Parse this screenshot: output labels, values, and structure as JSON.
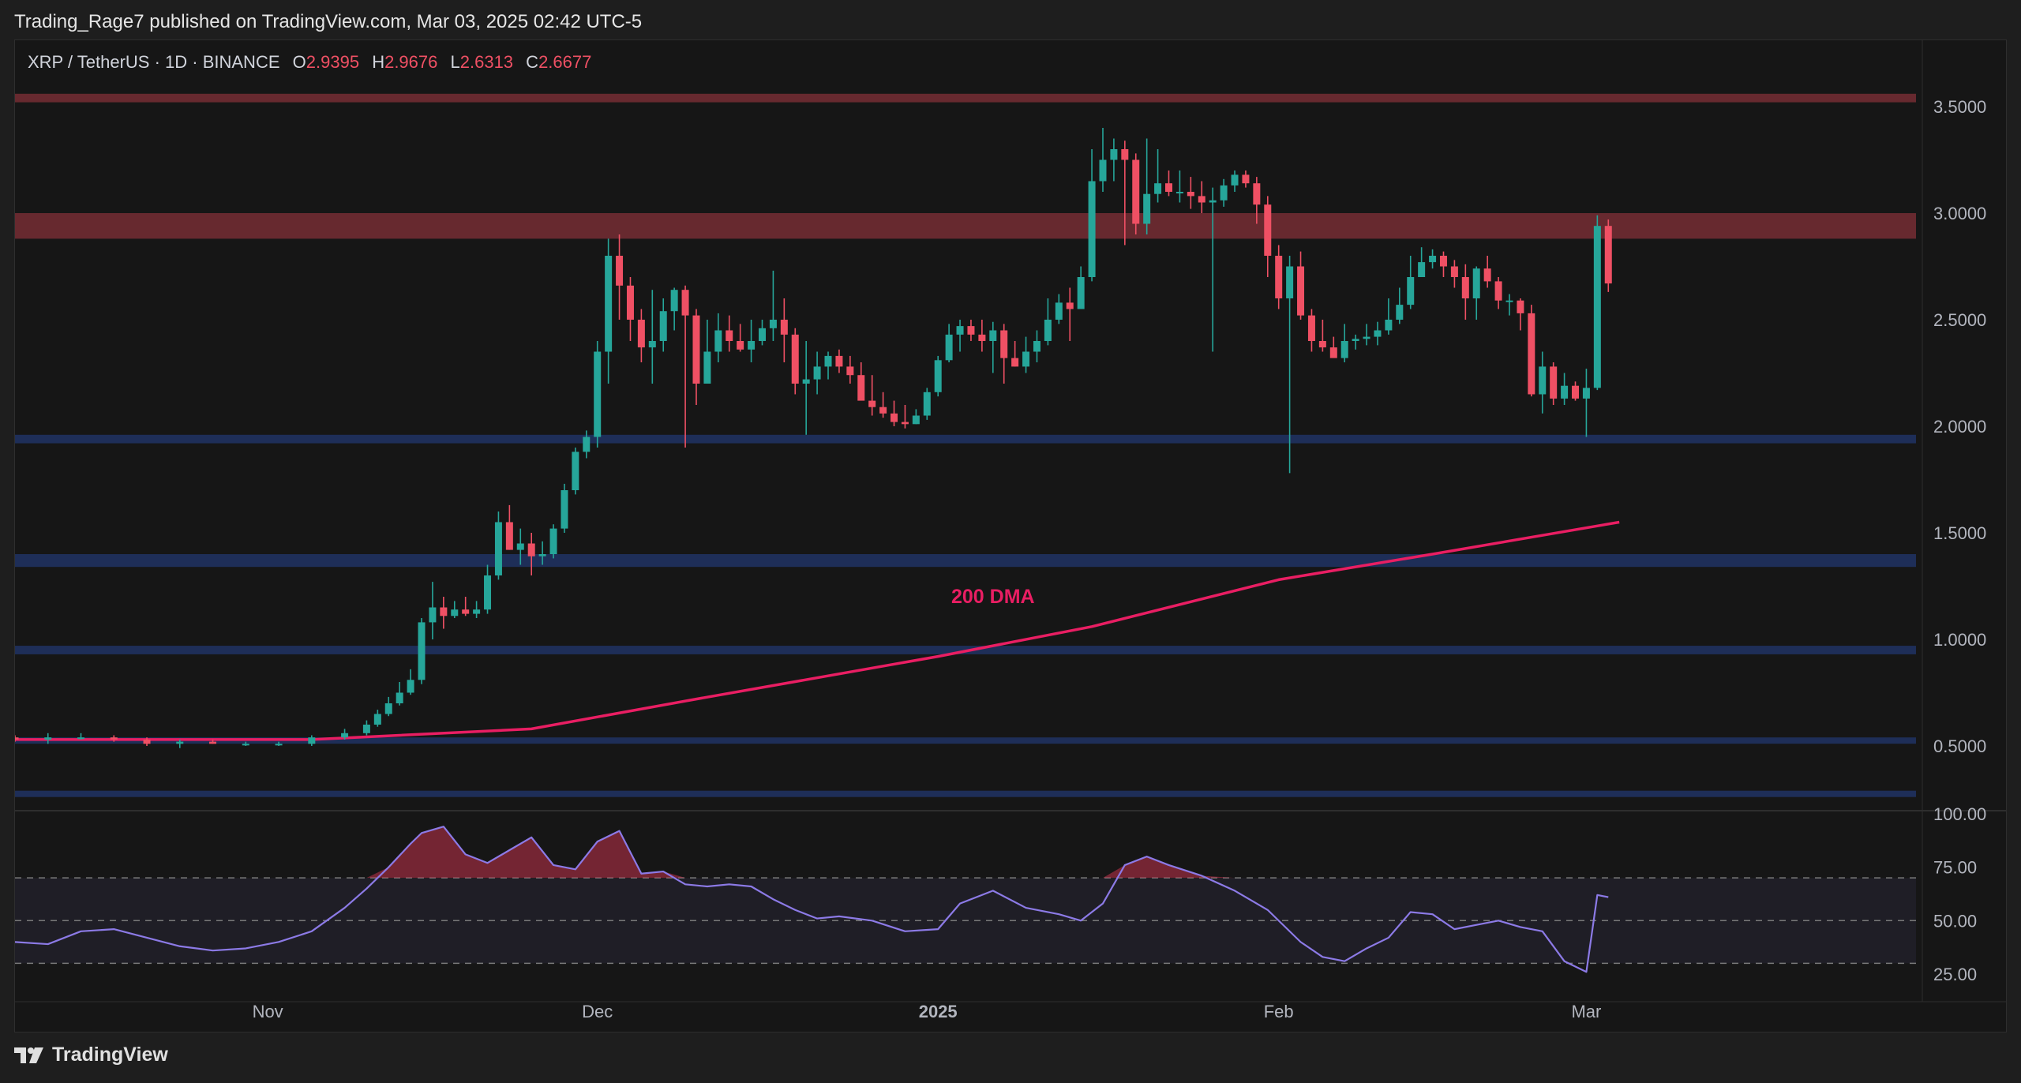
{
  "header": {
    "published_by": "Trading_Rage7 published on TradingView.com, Mar 03, 2025 02:42 UTC-5"
  },
  "symbol_bar": {
    "symbol": "XRP / TetherUS · 1D · BINANCE",
    "o_label": "O",
    "o_value": "2.9395",
    "h_label": "H",
    "h_value": "2.9676",
    "l_label": "L",
    "l_value": "2.6313",
    "c_label": "C",
    "c_value": "2.6677"
  },
  "footer": {
    "brand": "TradingView"
  },
  "colors": {
    "up": "#26a69a",
    "down": "#ef5064",
    "dma": "#e91e63",
    "rsi": "#8c7ae6",
    "supply_zone": "#6b2a30",
    "support_zone": "#1f2f5c",
    "value_text": "#ef5064"
  },
  "chart_data": [
    {
      "type": "candlestick",
      "title": "",
      "symbol": "XRP / TetherUS",
      "interval": "1D",
      "exchange": "BINANCE",
      "ylim": [
        0.2,
        3.7
      ],
      "y_ticks": [
        "3.5000",
        "3.0000",
        "2.5000",
        "2.0000",
        "1.5000",
        "1.0000",
        "0.5000"
      ],
      "x_ticks": [
        "Nov",
        "Dec",
        "2025",
        "Feb",
        "Mar"
      ],
      "x_tick_dates": [
        "2024-11-01",
        "2024-12-01",
        "2025-01-01",
        "2025-02-01",
        "2025-03-01"
      ],
      "x_range": [
        "2024-10-09",
        "2025-03-31"
      ],
      "grid": false,
      "annotations": [
        {
          "text": "200 DMA",
          "date": "2025-01-06",
          "price": 1.17
        }
      ],
      "zones": [
        {
          "kind": "resistance",
          "low": 3.52,
          "high": 3.56
        },
        {
          "kind": "resistance",
          "low": 2.88,
          "high": 3.0
        },
        {
          "kind": "support",
          "low": 1.92,
          "high": 1.96
        },
        {
          "kind": "support",
          "low": 1.34,
          "high": 1.4
        },
        {
          "kind": "support",
          "low": 0.93,
          "high": 0.97
        },
        {
          "kind": "support",
          "low": 0.52,
          "high": 0.54
        },
        {
          "kind": "support",
          "low": 0.27,
          "high": 0.29
        }
      ],
      "dma_200": {
        "dates": [
          "2024-10-09",
          "2024-11-05",
          "2024-11-25",
          "2024-12-10",
          "2025-01-01",
          "2025-01-15",
          "2025-02-01",
          "2025-02-15",
          "2025-03-04"
        ],
        "values": [
          0.53,
          0.53,
          0.58,
          0.72,
          0.92,
          1.06,
          1.28,
          1.4,
          1.55
        ]
      },
      "series": [
        {
          "dates": [
            "2024-10-09",
            "2024-10-12",
            "2024-10-15",
            "2024-10-18",
            "2024-10-21",
            "2024-10-24",
            "2024-10-27",
            "2024-10-30",
            "2024-11-02",
            "2024-11-05",
            "2024-11-08",
            "2024-11-10",
            "2024-11-11",
            "2024-11-12",
            "2024-11-13",
            "2024-11-14",
            "2024-11-15",
            "2024-11-16",
            "2024-11-17",
            "2024-11-18",
            "2024-11-19",
            "2024-11-20",
            "2024-11-21",
            "2024-11-22",
            "2024-11-23",
            "2024-11-24",
            "2024-11-25",
            "2024-11-26",
            "2024-11-27",
            "2024-11-28",
            "2024-11-29",
            "2024-11-30",
            "2024-12-01",
            "2024-12-02",
            "2024-12-03",
            "2024-12-04",
            "2024-12-05",
            "2024-12-06",
            "2024-12-07",
            "2024-12-08",
            "2024-12-09",
            "2024-12-10",
            "2024-12-11",
            "2024-12-12",
            "2024-12-13",
            "2024-12-14",
            "2024-12-15",
            "2024-12-16",
            "2024-12-17",
            "2024-12-18",
            "2024-12-19",
            "2024-12-20",
            "2024-12-21",
            "2024-12-22",
            "2024-12-23",
            "2024-12-24",
            "2024-12-25",
            "2024-12-26",
            "2024-12-27",
            "2024-12-28",
            "2024-12-29",
            "2024-12-30",
            "2024-12-31",
            "2025-01-01",
            "2025-01-02",
            "2025-01-03",
            "2025-01-04",
            "2025-01-05",
            "2025-01-06",
            "2025-01-07",
            "2025-01-08",
            "2025-01-09",
            "2025-01-10",
            "2025-01-11",
            "2025-01-12",
            "2025-01-13",
            "2025-01-14",
            "2025-01-15",
            "2025-01-16",
            "2025-01-17",
            "2025-01-18",
            "2025-01-19",
            "2025-01-20",
            "2025-01-21",
            "2025-01-22",
            "2025-01-23",
            "2025-01-24",
            "2025-01-25",
            "2025-01-26",
            "2025-01-27",
            "2025-01-28",
            "2025-01-29",
            "2025-01-30",
            "2025-01-31",
            "2025-02-01",
            "2025-02-02",
            "2025-02-03",
            "2025-02-04",
            "2025-02-05",
            "2025-02-06",
            "2025-02-07",
            "2025-02-08",
            "2025-02-09",
            "2025-02-10",
            "2025-02-11",
            "2025-02-12",
            "2025-02-13",
            "2025-02-14",
            "2025-02-15",
            "2025-02-16",
            "2025-02-17",
            "2025-02-18",
            "2025-02-19",
            "2025-02-20",
            "2025-02-21",
            "2025-02-22",
            "2025-02-23",
            "2025-02-24",
            "2025-02-25",
            "2025-02-26",
            "2025-02-27",
            "2025-02-28",
            "2025-03-01",
            "2025-03-02",
            "2025-03-03"
          ],
          "open": [
            0.54,
            0.53,
            0.54,
            0.54,
            0.53,
            0.51,
            0.52,
            0.51,
            0.51,
            0.51,
            0.54,
            0.56,
            0.6,
            0.65,
            0.7,
            0.75,
            0.81,
            1.08,
            1.15,
            1.11,
            1.14,
            1.12,
            1.14,
            1.3,
            1.55,
            1.42,
            1.45,
            1.39,
            1.4,
            1.52,
            1.7,
            1.88,
            1.95,
            2.35,
            2.8,
            2.66,
            2.5,
            2.37,
            2.4,
            2.54,
            2.64,
            2.52,
            2.2,
            2.35,
            2.45,
            2.4,
            2.36,
            2.4,
            2.46,
            2.5,
            2.43,
            2.2,
            2.22,
            2.28,
            2.33,
            2.28,
            2.24,
            2.12,
            2.09,
            2.06,
            2.02,
            2.01,
            2.05,
            2.16,
            2.31,
            2.43,
            2.47,
            2.43,
            2.4,
            2.45,
            2.32,
            2.28,
            2.35,
            2.4,
            2.5,
            2.58,
            2.55,
            2.7,
            3.15,
            3.25,
            3.3,
            3.25,
            2.95,
            3.09,
            3.14,
            3.1,
            3.1,
            3.08,
            3.05,
            3.06,
            3.13,
            3.18,
            3.14,
            3.04,
            2.8,
            2.6,
            2.75,
            2.52,
            2.4,
            2.37,
            2.32,
            2.4,
            2.41,
            2.42,
            2.45,
            2.5,
            2.57,
            2.7,
            2.77,
            2.8,
            2.75,
            2.7,
            2.6,
            2.74,
            2.68,
            2.59,
            2.59,
            2.53,
            2.15,
            2.28,
            2.13,
            2.19,
            2.13,
            2.18,
            2.94
          ],
          "high": [
            0.55,
            0.56,
            0.56,
            0.55,
            0.54,
            0.53,
            0.53,
            0.52,
            0.52,
            0.55,
            0.58,
            0.62,
            0.67,
            0.73,
            0.8,
            0.86,
            1.1,
            1.27,
            1.2,
            1.18,
            1.2,
            1.18,
            1.35,
            1.6,
            1.63,
            1.52,
            1.5,
            1.46,
            1.54,
            1.73,
            1.9,
            1.98,
            2.4,
            2.88,
            2.9,
            2.7,
            2.55,
            2.64,
            2.6,
            2.65,
            2.66,
            2.55,
            2.5,
            2.53,
            2.52,
            2.48,
            2.5,
            2.5,
            2.73,
            2.6,
            2.46,
            2.4,
            2.35,
            2.35,
            2.36,
            2.33,
            2.3,
            2.24,
            2.16,
            2.12,
            2.1,
            2.08,
            2.18,
            2.33,
            2.48,
            2.5,
            2.5,
            2.5,
            2.49,
            2.48,
            2.4,
            2.42,
            2.45,
            2.6,
            2.62,
            2.65,
            2.75,
            3.3,
            3.4,
            3.35,
            3.34,
            3.28,
            3.35,
            3.3,
            3.2,
            3.2,
            3.17,
            3.15,
            3.12,
            3.16,
            3.2,
            3.2,
            3.17,
            3.08,
            2.85,
            2.8,
            2.82,
            2.55,
            2.5,
            2.42,
            2.48,
            2.43,
            2.48,
            2.49,
            2.6,
            2.65,
            2.8,
            2.84,
            2.83,
            2.82,
            2.78,
            2.76,
            2.75,
            2.8,
            2.7,
            2.62,
            2.6,
            2.57,
            2.35,
            2.3,
            2.25,
            2.21,
            2.27,
            2.99,
            2.97
          ],
          "low": [
            0.52,
            0.51,
            0.53,
            0.52,
            0.5,
            0.49,
            0.51,
            0.5,
            0.5,
            0.5,
            0.53,
            0.55,
            0.59,
            0.64,
            0.69,
            0.74,
            0.79,
            1.0,
            1.05,
            1.1,
            1.11,
            1.1,
            1.12,
            1.28,
            1.42,
            1.35,
            1.3,
            1.35,
            1.38,
            1.5,
            1.68,
            1.85,
            1.9,
            2.2,
            2.5,
            2.4,
            2.3,
            2.2,
            2.35,
            2.45,
            1.9,
            2.1,
            2.2,
            2.3,
            2.35,
            2.35,
            2.3,
            2.38,
            2.4,
            2.3,
            2.15,
            1.96,
            2.15,
            2.22,
            2.25,
            2.2,
            2.13,
            2.05,
            2.04,
            2.0,
            1.99,
            2.01,
            2.03,
            2.14,
            2.3,
            2.35,
            2.4,
            2.35,
            2.25,
            2.2,
            2.28,
            2.25,
            2.3,
            2.38,
            2.48,
            2.4,
            2.55,
            2.68,
            3.1,
            3.15,
            2.85,
            2.9,
            2.9,
            3.05,
            3.08,
            3.05,
            3.02,
            3.0,
            2.35,
            3.03,
            3.1,
            3.12,
            2.95,
            2.7,
            2.55,
            1.78,
            2.5,
            2.35,
            2.35,
            2.33,
            2.3,
            2.36,
            2.38,
            2.38,
            2.43,
            2.48,
            2.55,
            2.7,
            2.74,
            2.7,
            2.65,
            2.5,
            2.5,
            2.65,
            2.55,
            2.52,
            2.45,
            2.14,
            2.06,
            2.1,
            2.1,
            2.12,
            1.95,
            2.17,
            2.63
          ],
          "close": [
            0.53,
            0.54,
            0.54,
            0.53,
            0.51,
            0.52,
            0.51,
            0.51,
            0.51,
            0.54,
            0.56,
            0.6,
            0.65,
            0.7,
            0.75,
            0.81,
            1.08,
            1.15,
            1.11,
            1.14,
            1.12,
            1.14,
            1.3,
            1.55,
            1.42,
            1.45,
            1.39,
            1.4,
            1.52,
            1.7,
            1.88,
            1.95,
            2.35,
            2.8,
            2.66,
            2.5,
            2.37,
            2.4,
            2.54,
            2.64,
            2.52,
            2.2,
            2.35,
            2.45,
            2.4,
            2.36,
            2.4,
            2.46,
            2.5,
            2.43,
            2.2,
            2.22,
            2.28,
            2.33,
            2.28,
            2.24,
            2.12,
            2.09,
            2.06,
            2.02,
            2.01,
            2.05,
            2.16,
            2.31,
            2.43,
            2.47,
            2.43,
            2.4,
            2.45,
            2.32,
            2.28,
            2.35,
            2.4,
            2.5,
            2.58,
            2.55,
            2.7,
            3.15,
            3.25,
            3.3,
            3.25,
            2.95,
            3.09,
            3.14,
            3.1,
            3.1,
            3.08,
            3.05,
            3.06,
            3.13,
            3.18,
            3.14,
            3.04,
            2.8,
            2.6,
            2.75,
            2.52,
            2.4,
            2.37,
            2.32,
            2.4,
            2.41,
            2.42,
            2.45,
            2.5,
            2.57,
            2.7,
            2.77,
            2.8,
            2.75,
            2.7,
            2.6,
            2.74,
            2.68,
            2.59,
            2.59,
            2.53,
            2.15,
            2.28,
            2.13,
            2.19,
            2.13,
            2.18,
            2.94,
            2.67
          ]
        }
      ]
    },
    {
      "type": "line",
      "title": "",
      "ylim": [
        15,
        100
      ],
      "y_ticks": [
        "100.00",
        "75.00",
        "50.00",
        "25.00"
      ],
      "levels": [
        30,
        50,
        70
      ],
      "series": [
        {
          "dates": [
            "2024-10-09",
            "2024-10-12",
            "2024-10-15",
            "2024-10-18",
            "2024-10-21",
            "2024-10-24",
            "2024-10-27",
            "2024-10-30",
            "2024-11-02",
            "2024-11-05",
            "2024-11-08",
            "2024-11-10",
            "2024-11-12",
            "2024-11-14",
            "2024-11-15",
            "2024-11-17",
            "2024-11-19",
            "2024-11-21",
            "2024-11-23",
            "2024-11-25",
            "2024-11-27",
            "2024-11-29",
            "2024-12-01",
            "2024-12-03",
            "2024-12-05",
            "2024-12-07",
            "2024-12-09",
            "2024-12-11",
            "2024-12-13",
            "2024-12-15",
            "2024-12-17",
            "2024-12-19",
            "2024-12-21",
            "2024-12-23",
            "2024-12-26",
            "2024-12-29",
            "2025-01-01",
            "2025-01-03",
            "2025-01-06",
            "2025-01-09",
            "2025-01-12",
            "2025-01-14",
            "2025-01-16",
            "2025-01-18",
            "2025-01-20",
            "2025-01-22",
            "2025-01-25",
            "2025-01-28",
            "2025-01-31",
            "2025-02-03",
            "2025-02-05",
            "2025-02-07",
            "2025-02-09",
            "2025-02-11",
            "2025-02-13",
            "2025-02-15",
            "2025-02-17",
            "2025-02-19",
            "2025-02-21",
            "2025-02-23",
            "2025-02-25",
            "2025-02-27",
            "2025-03-01",
            "2025-03-02",
            "2025-03-03"
          ],
          "values": [
            40,
            39,
            45,
            46,
            42,
            38,
            36,
            37,
            40,
            45,
            56,
            65,
            75,
            86,
            91,
            94,
            81,
            77,
            83,
            89,
            76,
            74,
            87,
            92,
            72,
            73,
            67,
            66,
            67,
            66,
            60,
            55,
            51,
            52,
            50,
            45,
            46,
            58,
            64,
            56,
            53,
            50,
            58,
            76,
            80,
            76,
            71,
            64,
            55,
            40,
            33,
            31,
            37,
            42,
            54,
            53,
            46,
            48,
            50,
            47,
            45,
            31,
            26,
            62,
            61
          ]
        }
      ]
    }
  ]
}
